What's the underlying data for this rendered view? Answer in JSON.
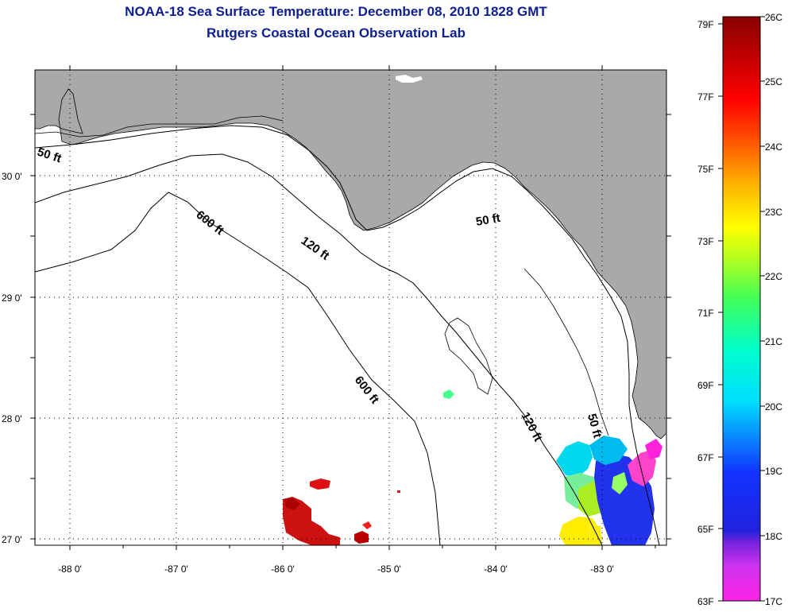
{
  "title": {
    "line1": "NOAA-18 Sea Surface Temperature:  December 08, 2010 1828 GMT",
    "line2": "Rutgers Coastal Ocean Observation Lab"
  },
  "map": {
    "lat_labels": [
      "30 0'",
      "29 0'",
      "28 0'",
      "27 0'"
    ],
    "lon_labels": [
      "-88 0'",
      "-87 0'",
      "-86 0'",
      "-85 0'",
      "-84 0'",
      "-83 0'"
    ],
    "contour_labels": [
      "50 ft",
      "600 ft",
      "120 ft",
      "50 ft",
      "600 ft",
      "120 ft",
      "50 ft"
    ],
    "colors": {
      "land": "#a9a9a9",
      "ocean": "#ffffff",
      "contour": "#000000",
      "grid": "#000000"
    }
  },
  "colorbar": {
    "fahrenheit_labels": [
      "79F",
      "77F",
      "75F",
      "73F",
      "71F",
      "69F",
      "67F",
      "65F",
      "63F"
    ],
    "celsius_labels": [
      "26C",
      "25C",
      "24C",
      "23C",
      "22C",
      "21C",
      "20C",
      "19C",
      "18C",
      "17C"
    ],
    "range_celsius": [
      17,
      26
    ]
  }
}
